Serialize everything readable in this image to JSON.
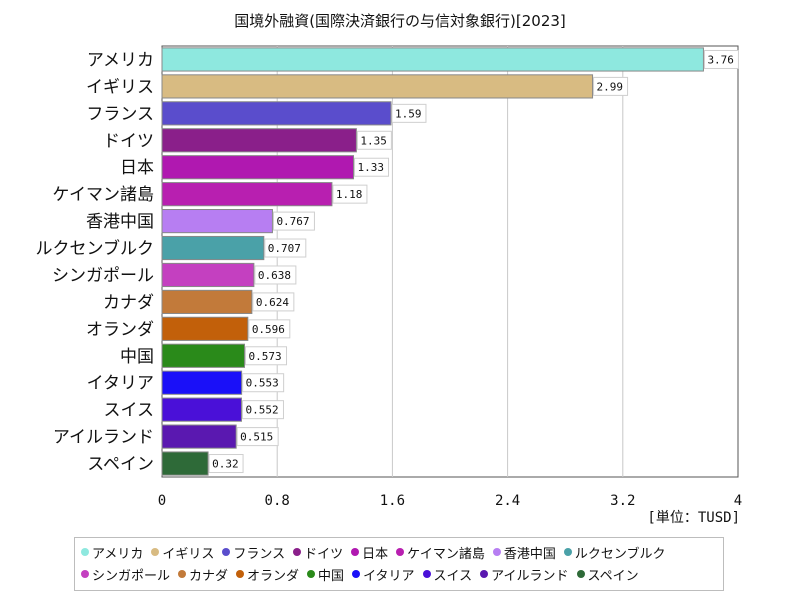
{
  "chart_data": {
    "type": "bar",
    "orientation": "horizontal",
    "title": "国境外融資(国際決済銀行の与信対象銀行)[2023]",
    "unit": "[単位：TUSD]",
    "categories": [
      "アメリカ",
      "イギリス",
      "フランス",
      "ドイツ",
      "日本",
      "ケイマン諸島",
      "香港中国",
      "ルクセンブルク",
      "シンガポール",
      "カナダ",
      "オランダ",
      "中国",
      "イタリア",
      "スイス",
      "アイルランド",
      "スペイン"
    ],
    "values": [
      3.76,
      2.99,
      1.59,
      1.35,
      1.33,
      1.18,
      0.767,
      0.707,
      0.638,
      0.624,
      0.596,
      0.573,
      0.553,
      0.552,
      0.515,
      0.32
    ],
    "value_labels": [
      "3.76",
      "2.99",
      "1.59",
      "1.35",
      "1.33",
      "1.18",
      "0.767",
      "0.707",
      "0.638",
      "0.624",
      "0.596",
      "0.573",
      "0.553",
      "0.552",
      "0.515",
      "0.32"
    ],
    "colors": [
      "#8ee8df",
      "#d8bb82",
      "#5a4dcc",
      "#8a1f8a",
      "#b018b0",
      "#b81fb0",
      "#b77ef2",
      "#4aa1a8",
      "#c440c0",
      "#c27a3a",
      "#c2600a",
      "#2a8a1a",
      "#1a10f8",
      "#4a10d8",
      "#5a18b0",
      "#2e6a38"
    ],
    "xlim": [
      0,
      4
    ],
    "x_ticks": [
      "0",
      "0.8",
      "1.6",
      "2.4",
      "3.2",
      "4"
    ],
    "grid": true,
    "legend_position": "bottom"
  }
}
